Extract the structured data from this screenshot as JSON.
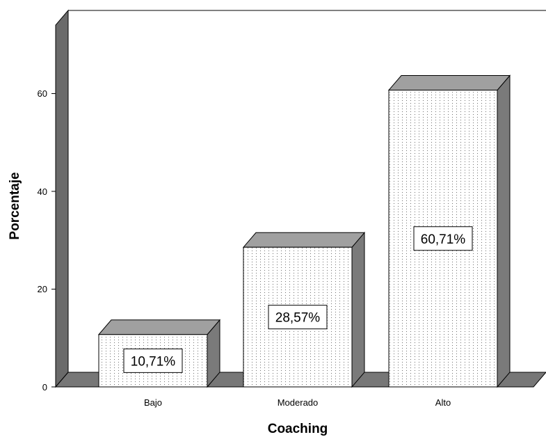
{
  "chart_data": {
    "type": "bar",
    "style": "3d",
    "categories": [
      "Bajo",
      "Moderado",
      "Alto"
    ],
    "values": [
      10.71,
      28.57,
      60.71
    ],
    "data_labels": [
      "10,71%",
      "28,57%",
      "60,71%"
    ],
    "xlabel": "Coaching",
    "ylabel": "Porcentaje",
    "ylim": [
      0,
      75
    ],
    "yticks": [
      "0",
      "20",
      "40",
      "60"
    ],
    "grid": false,
    "colors": {
      "bar_front": "#ffffff",
      "bar_pattern": "#6e6e6e",
      "bar_top": "#a0a0a0",
      "bar_side": "#7a7a7a",
      "wall_side": "#6a6a6a",
      "floor": "#777777",
      "outline": "#000000"
    }
  }
}
